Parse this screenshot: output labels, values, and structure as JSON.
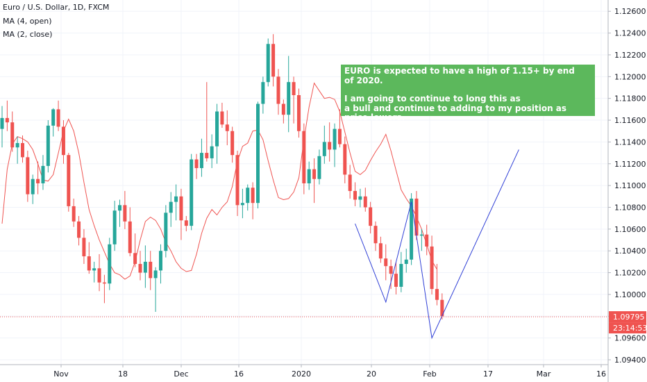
{
  "legend": {
    "symbol": "Euro / U.S. Dollar, 1D, FXCM",
    "ma1": "MA (4, open)",
    "ma2": "MA (2, close)"
  },
  "annotation": {
    "line1": "EURO is expected to have a high of 1.15+ by end",
    "line2": "of 2020.",
    "line3": "I am going to continue to long this as",
    "line4": "a bull and continue to adding to my position as price lowers."
  },
  "price_badge": "1.09795",
  "countdown_badge": "23:14:53",
  "colors": {
    "up": "#26a69a",
    "down": "#ef5350",
    "ma": "#ef5350",
    "projection": "#2f3fd6",
    "grid": "#f0f3fa",
    "axis_text": "#131722"
  },
  "chart_data": {
    "type": "candlestick",
    "title": "Euro / U.S. Dollar, 1D, FXCM",
    "x_tick_labels": [
      "Nov",
      "18",
      "Dec",
      "16",
      "2020",
      "20",
      "Feb",
      "17",
      "Mar",
      "16"
    ],
    "y_tick_labels": [
      "1.09400",
      "1.09600",
      "1.09800",
      "1.10000",
      "1.10200",
      "1.10400",
      "1.10600",
      "1.10800",
      "1.11000",
      "1.11200",
      "1.11400",
      "1.11600",
      "1.11800",
      "1.12000",
      "1.12200",
      "1.12400",
      "1.12600"
    ],
    "ylim": [
      1.0936,
      1.1275
    ],
    "grid": true,
    "last_price": 1.09795,
    "candles": [
      [
        1.1152,
        1.1173,
        1.1135,
        1.1162
      ],
      [
        1.1162,
        1.1178,
        1.115,
        1.1158
      ],
      [
        1.1158,
        1.1168,
        1.1131,
        1.1135
      ],
      [
        1.1135,
        1.1145,
        1.112,
        1.1139
      ],
      [
        1.1139,
        1.1146,
        1.1121,
        1.1126
      ],
      [
        1.1126,
        1.1132,
        1.1085,
        1.1092
      ],
      [
        1.1092,
        1.111,
        1.1083,
        1.1106
      ],
      [
        1.1106,
        1.1122,
        1.1092,
        1.1102
      ],
      [
        1.1102,
        1.1128,
        1.1096,
        1.1118
      ],
      [
        1.1118,
        1.116,
        1.1112,
        1.1155
      ],
      [
        1.1155,
        1.1171,
        1.1145,
        1.117
      ],
      [
        1.117,
        1.1178,
        1.115,
        1.1154
      ],
      [
        1.1154,
        1.116,
        1.112,
        1.1128
      ],
      [
        1.1128,
        1.113,
        1.1076,
        1.1081
      ],
      [
        1.1081,
        1.1088,
        1.1062,
        1.1067
      ],
      [
        1.1067,
        1.1072,
        1.1045,
        1.1052
      ],
      [
        1.1052,
        1.106,
        1.1028,
        1.1035
      ],
      [
        1.1035,
        1.1048,
        1.1019,
        1.1022
      ],
      [
        1.1022,
        1.103,
        1.1011,
        1.1024
      ],
      [
        1.1024,
        1.1037,
        1.1003,
        1.1011
      ],
      [
        1.1011,
        1.1018,
        1.0992,
        1.101
      ],
      [
        1.101,
        1.1052,
        1.1004,
        1.1046
      ],
      [
        1.1046,
        1.1086,
        1.104,
        1.1077
      ],
      [
        1.1077,
        1.1087,
        1.1062,
        1.1082
      ],
      [
        1.1082,
        1.1095,
        1.106,
        1.1067
      ],
      [
        1.1067,
        1.108,
        1.1035,
        1.1038
      ],
      [
        1.1038,
        1.1056,
        1.1025,
        1.1028
      ],
      [
        1.1028,
        1.104,
        1.1013,
        1.102
      ],
      [
        1.102,
        1.1045,
        1.1006,
        1.103
      ],
      [
        1.103,
        1.104,
        1.1004,
        1.1015
      ],
      [
        1.1015,
        1.1025,
        1.0984,
        1.1022
      ],
      [
        1.1022,
        1.1046,
        1.101,
        1.104
      ],
      [
        1.104,
        1.1082,
        1.1034,
        1.1075
      ],
      [
        1.1075,
        1.1094,
        1.1062,
        1.1085
      ],
      [
        1.1085,
        1.1101,
        1.1068,
        1.109
      ],
      [
        1.109,
        1.1097,
        1.105,
        1.1068
      ],
      [
        1.1068,
        1.1072,
        1.1058,
        1.1063
      ],
      [
        1.1063,
        1.1129,
        1.1059,
        1.1124
      ],
      [
        1.1124,
        1.1129,
        1.1106,
        1.1116
      ],
      [
        1.1116,
        1.1143,
        1.1108,
        1.113
      ],
      [
        1.113,
        1.1195,
        1.1122,
        1.1125
      ],
      [
        1.1125,
        1.1147,
        1.1116,
        1.1136
      ],
      [
        1.1136,
        1.1175,
        1.112,
        1.1168
      ],
      [
        1.1168,
        1.1176,
        1.1153,
        1.1156
      ],
      [
        1.1156,
        1.1169,
        1.1137,
        1.115
      ],
      [
        1.115,
        1.1154,
        1.1121,
        1.1128
      ],
      [
        1.1128,
        1.1132,
        1.1072,
        1.1082
      ],
      [
        1.1082,
        1.1097,
        1.107,
        1.1084
      ],
      [
        1.1084,
        1.1101,
        1.1077,
        1.1098
      ],
      [
        1.1098,
        1.1103,
        1.1069,
        1.1084
      ],
      [
        1.1084,
        1.1177,
        1.1079,
        1.1175
      ],
      [
        1.1175,
        1.12,
        1.1166,
        1.1195
      ],
      [
        1.1195,
        1.1235,
        1.1191,
        1.123
      ],
      [
        1.123,
        1.1239,
        1.1191,
        1.12
      ],
      [
        1.12,
        1.1207,
        1.1165,
        1.1175
      ],
      [
        1.1175,
        1.1179,
        1.1157,
        1.1165
      ],
      [
        1.1165,
        1.1219,
        1.1149,
        1.1195
      ],
      [
        1.1195,
        1.12,
        1.1157,
        1.1183
      ],
      [
        1.1183,
        1.1189,
        1.1144,
        1.115
      ],
      [
        1.115,
        1.1157,
        1.1092,
        1.1102
      ],
      [
        1.1102,
        1.1122,
        1.1096,
        1.1115
      ],
      [
        1.1115,
        1.1125,
        1.1084,
        1.1106
      ],
      [
        1.1106,
        1.1133,
        1.1101,
        1.1127
      ],
      [
        1.1127,
        1.1155,
        1.112,
        1.114
      ],
      [
        1.114,
        1.1158,
        1.1122,
        1.1133
      ],
      [
        1.1133,
        1.1157,
        1.1117,
        1.1152
      ],
      [
        1.1152,
        1.117,
        1.1135,
        1.1138
      ],
      [
        1.1138,
        1.1145,
        1.1102,
        1.111
      ],
      [
        1.111,
        1.1119,
        1.1088,
        1.1095
      ],
      [
        1.1095,
        1.1103,
        1.1081,
        1.1087
      ],
      [
        1.1087,
        1.1097,
        1.108,
        1.109
      ],
      [
        1.109,
        1.1098,
        1.1076,
        1.108
      ],
      [
        1.108,
        1.1085,
        1.1056,
        1.1063
      ],
      [
        1.1063,
        1.1067,
        1.104,
        1.1047
      ],
      [
        1.1047,
        1.1053,
        1.1029,
        1.1033
      ],
      [
        1.1033,
        1.1046,
        1.1013,
        1.1026
      ],
      [
        1.1026,
        1.1032,
        1.1005,
        1.1019
      ],
      [
        1.1019,
        1.103,
        1.1,
        1.1007
      ],
      [
        1.1007,
        1.1039,
        1.1002,
        1.1028
      ],
      [
        1.1028,
        1.1042,
        1.102,
        1.1032
      ],
      [
        1.1032,
        1.1093,
        1.1027,
        1.1088
      ],
      [
        1.1088,
        1.1095,
        1.105,
        1.1054
      ],
      [
        1.1054,
        1.106,
        1.104,
        1.1055
      ],
      [
        1.1055,
        1.1064,
        1.1036,
        1.1044
      ],
      [
        1.1044,
        1.1054,
        1.1,
        1.1005
      ],
      [
        1.1005,
        1.1028,
        1.099,
        1.0995
      ],
      [
        1.0995,
        1.1001,
        1.0977,
        1.098
      ]
    ],
    "ma_values": [
      1.1065,
      1.1115,
      1.1138,
      1.1145,
      1.1143,
      1.114,
      1.1133,
      1.112,
      1.1105,
      1.1104,
      1.111,
      1.113,
      1.115,
      1.1161,
      1.115,
      1.113,
      1.1103,
      1.1078,
      1.1063,
      1.105,
      1.1039,
      1.1028,
      1.102,
      1.1018,
      1.1014,
      1.1017,
      1.103,
      1.105,
      1.1067,
      1.1071,
      1.1068,
      1.106,
      1.1048,
      1.104,
      1.103,
      1.1024,
      1.1021,
      1.1022,
      1.1037,
      1.1056,
      1.107,
      1.1078,
      1.1073,
      1.108,
      1.1085,
      1.1099,
      1.1122,
      1.1136,
      1.1139,
      1.115,
      1.1151,
      1.1142,
      1.1123,
      1.1105,
      1.1089,
      1.1087,
      1.1088,
      1.1094,
      1.1107,
      1.1142,
      1.1172,
      1.1194,
      1.1187,
      1.118,
      1.1181,
      1.1179,
      1.1168,
      1.1149,
      1.113,
      1.1113,
      1.111,
      1.1114,
      1.1123,
      1.1131,
      1.1138,
      1.1147,
      1.1132,
      1.1114,
      1.1096,
      1.1088,
      1.1081,
      1.1071,
      1.106,
      1.1046,
      1.1031,
      1.1023
    ],
    "projection_points": [
      {
        "bar": 69,
        "value": 1.1065
      },
      {
        "bar": 75,
        "value": 1.0993
      },
      {
        "bar": 80,
        "value": 1.1085
      },
      {
        "bar": 84,
        "value": 1.096
      },
      {
        "bar": 101,
        "value": 1.1133
      }
    ]
  }
}
